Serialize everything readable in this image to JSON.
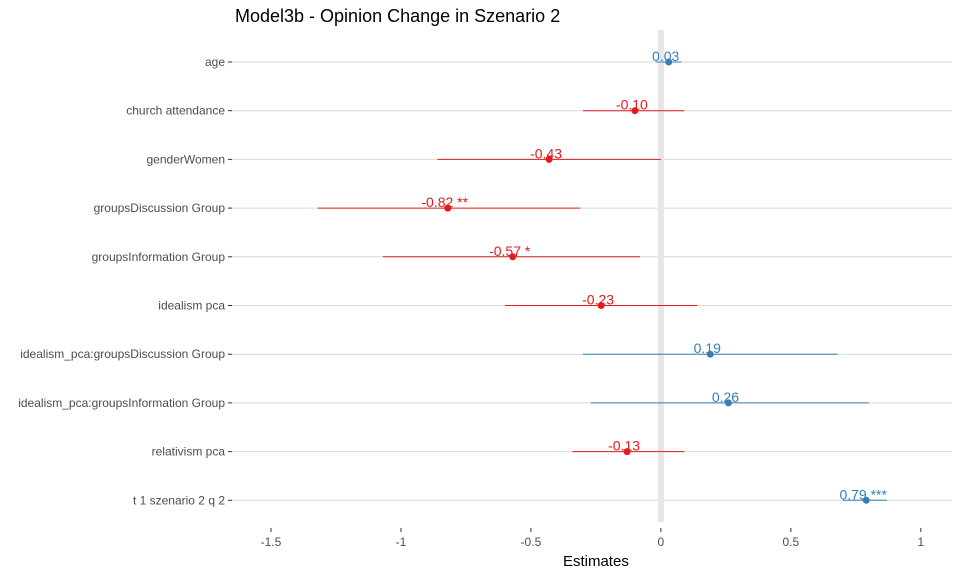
{
  "chart_data": {
    "type": "forest",
    "title": "Model3b - Opinion Change in Szenario 2",
    "xlabel": "Estimates",
    "ylabel": "",
    "xlim": [
      -1.65,
      1.12
    ],
    "x_ticks": [
      -1.5,
      -1,
      -0.5,
      0,
      0.5,
      1
    ],
    "x_tick_labels": [
      "-1.5",
      "-1",
      "-0.5",
      "0",
      "0.5",
      "1"
    ],
    "grid": true,
    "colors": {
      "positive": "#377eb8",
      "negative": "#e41a1c",
      "zero_line": "#e6e6e6"
    },
    "terms": [
      {
        "term": "age",
        "estimate": 0.03,
        "low": -0.02,
        "high": 0.08,
        "label": "0.03"
      },
      {
        "term": "church attendance",
        "estimate": -0.1,
        "low": -0.3,
        "high": 0.09,
        "label": "-0.10"
      },
      {
        "term": "genderWomen",
        "estimate": -0.43,
        "low": -0.86,
        "high": 0.0,
        "label": "-0.43"
      },
      {
        "term": "groupsDiscussion Group",
        "estimate": -0.82,
        "low": -1.32,
        "high": -0.31,
        "label": "-0.82 **"
      },
      {
        "term": "groupsInformation Group",
        "estimate": -0.57,
        "low": -1.07,
        "high": -0.08,
        "label": "-0.57 *"
      },
      {
        "term": "idealism pca",
        "estimate": -0.23,
        "low": -0.6,
        "high": 0.14,
        "label": "-0.23"
      },
      {
        "term": "idealism_pca:groupsDiscussion Group",
        "estimate": 0.19,
        "low": -0.3,
        "high": 0.68,
        "label": "0.19"
      },
      {
        "term": "idealism_pca:groupsInformation Group",
        "estimate": 0.26,
        "low": -0.27,
        "high": 0.8,
        "label": "0.26"
      },
      {
        "term": "relativism pca",
        "estimate": -0.13,
        "low": -0.34,
        "high": 0.09,
        "label": "-0.13"
      },
      {
        "term": "t 1 szenario 2 q 2",
        "estimate": 0.79,
        "low": 0.7,
        "high": 0.87,
        "label": "0.79 ***"
      }
    ]
  }
}
